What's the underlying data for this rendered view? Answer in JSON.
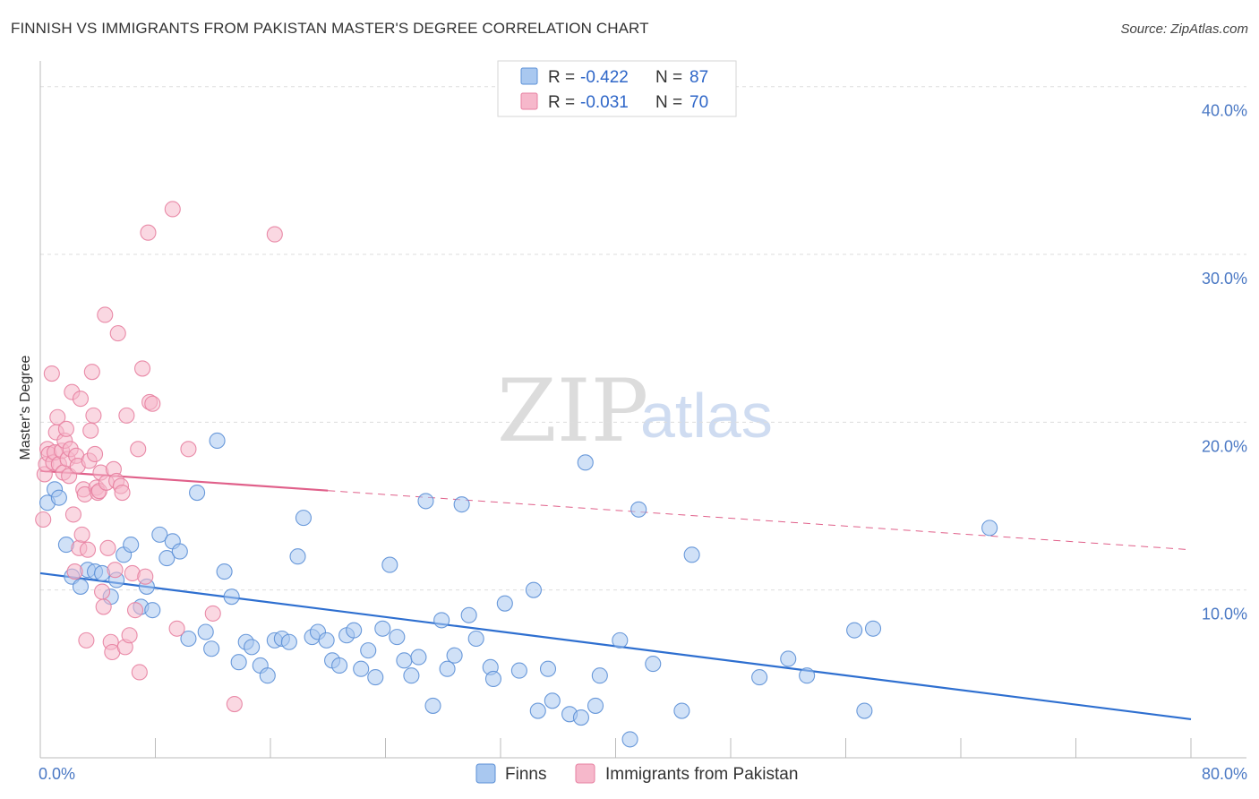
{
  "title": "FINNISH VS IMMIGRANTS FROM PAKISTAN MASTER'S DEGREE CORRELATION CHART",
  "source": "Source: ZipAtlas.com",
  "watermark": {
    "zip": "ZIP",
    "atlas": "atlas"
  },
  "colors": {
    "finns_fill": "#a9c8f0",
    "finns_stroke": "#5b8fd6",
    "finns_line": "#2e6fd0",
    "pak_fill": "#f6b8cb",
    "pak_stroke": "#e77fa0",
    "pak_line": "#e0608a",
    "grid": "#dddddd",
    "tick_text": "#4a78c4"
  },
  "legend": {
    "rows": [
      {
        "r_label": "R = ",
        "r_value": "-0.422",
        "n_label": "N = ",
        "n_value": "87"
      },
      {
        "r_label": "R = ",
        "r_value": "-0.031",
        "n_label": "N = ",
        "n_value": "70"
      }
    ]
  },
  "bottom_legend": [
    "Finns",
    "Immigrants from Pakistan"
  ],
  "chart_data": {
    "type": "scatter",
    "title": "FINNISH VS IMMIGRANTS FROM PAKISTAN MASTER'S DEGREE CORRELATION CHART",
    "xlabel": "",
    "ylabel": "Master's Degree",
    "xlim": [
      0,
      80
    ],
    "ylim": [
      0,
      41
    ],
    "x_tick_labels": [
      {
        "value": 0,
        "label": "0.0%"
      },
      {
        "value": 80,
        "label": "80.0%"
      }
    ],
    "y_tick_labels": [
      {
        "value": 10,
        "label": "10.0%"
      },
      {
        "value": 20,
        "label": "20.0%"
      },
      {
        "value": 30,
        "label": "30.0%"
      },
      {
        "value": 40,
        "label": "40.0%"
      }
    ],
    "x_minor_ticks": [
      8,
      16,
      24,
      32,
      40,
      48,
      56,
      64,
      72,
      80
    ],
    "series": [
      {
        "name": "Finns",
        "r": -0.422,
        "n": 87,
        "trend": {
          "x0": 0,
          "y0": 11.0,
          "x1": 80,
          "y1": 2.3,
          "dashed_from": null
        },
        "points": [
          [
            0.5,
            15.2
          ],
          [
            1.0,
            16.0
          ],
          [
            1.3,
            15.5
          ],
          [
            1.8,
            12.7
          ],
          [
            2.2,
            10.8
          ],
          [
            2.8,
            10.2
          ],
          [
            3.3,
            11.2
          ],
          [
            3.8,
            11.1
          ],
          [
            4.3,
            11.0
          ],
          [
            4.9,
            9.6
          ],
          [
            5.3,
            10.6
          ],
          [
            5.8,
            12.1
          ],
          [
            6.3,
            12.7
          ],
          [
            7.0,
            9.0
          ],
          [
            7.4,
            10.2
          ],
          [
            7.8,
            8.8
          ],
          [
            8.3,
            13.3
          ],
          [
            8.8,
            11.9
          ],
          [
            9.2,
            12.9
          ],
          [
            9.7,
            12.3
          ],
          [
            10.3,
            7.1
          ],
          [
            10.9,
            15.8
          ],
          [
            11.5,
            7.5
          ],
          [
            11.9,
            6.5
          ],
          [
            12.3,
            18.9
          ],
          [
            12.8,
            11.1
          ],
          [
            13.3,
            9.6
          ],
          [
            13.8,
            5.7
          ],
          [
            14.3,
            6.9
          ],
          [
            14.7,
            6.6
          ],
          [
            15.3,
            5.5
          ],
          [
            15.8,
            4.9
          ],
          [
            16.3,
            7.0
          ],
          [
            16.8,
            7.1
          ],
          [
            17.3,
            6.9
          ],
          [
            17.9,
            12.0
          ],
          [
            18.3,
            14.3
          ],
          [
            18.9,
            7.2
          ],
          [
            19.3,
            7.5
          ],
          [
            19.9,
            7.0
          ],
          [
            20.3,
            5.8
          ],
          [
            20.8,
            5.5
          ],
          [
            21.3,
            7.3
          ],
          [
            21.8,
            7.6
          ],
          [
            22.3,
            5.3
          ],
          [
            22.8,
            6.4
          ],
          [
            23.3,
            4.8
          ],
          [
            23.8,
            7.7
          ],
          [
            24.3,
            11.5
          ],
          [
            24.8,
            7.2
          ],
          [
            25.3,
            5.8
          ],
          [
            25.8,
            4.9
          ],
          [
            26.3,
            6.0
          ],
          [
            26.8,
            15.3
          ],
          [
            27.3,
            3.1
          ],
          [
            27.9,
            8.2
          ],
          [
            28.3,
            5.3
          ],
          [
            28.8,
            6.1
          ],
          [
            29.3,
            15.1
          ],
          [
            29.8,
            8.5
          ],
          [
            30.3,
            7.1
          ],
          [
            31.3,
            5.4
          ],
          [
            31.5,
            4.7
          ],
          [
            32.3,
            9.2
          ],
          [
            33.3,
            5.2
          ],
          [
            34.3,
            10.0
          ],
          [
            34.6,
            2.8
          ],
          [
            35.3,
            5.3
          ],
          [
            35.6,
            3.4
          ],
          [
            36.8,
            2.6
          ],
          [
            37.6,
            2.4
          ],
          [
            37.9,
            17.6
          ],
          [
            38.6,
            3.1
          ],
          [
            38.9,
            4.9
          ],
          [
            40.3,
            7.0
          ],
          [
            41.0,
            1.1
          ],
          [
            41.6,
            14.8
          ],
          [
            42.6,
            5.6
          ],
          [
            44.6,
            2.8
          ],
          [
            45.3,
            12.1
          ],
          [
            50.0,
            4.8
          ],
          [
            52.0,
            5.9
          ],
          [
            53.3,
            4.9
          ],
          [
            56.6,
            7.6
          ],
          [
            57.3,
            2.8
          ],
          [
            57.9,
            7.7
          ],
          [
            66.0,
            13.7
          ]
        ]
      },
      {
        "name": "Immigrants from Pakistan",
        "r": -0.031,
        "n": 70,
        "trend": {
          "x0": 0,
          "y0": 17.1,
          "x1": 80,
          "y1": 12.4,
          "dashed_from": 20
        },
        "points": [
          [
            0.2,
            14.2
          ],
          [
            0.3,
            16.9
          ],
          [
            0.4,
            17.5
          ],
          [
            0.5,
            18.4
          ],
          [
            0.6,
            18.1
          ],
          [
            0.8,
            22.9
          ],
          [
            0.9,
            17.6
          ],
          [
            1.0,
            18.2
          ],
          [
            1.1,
            19.4
          ],
          [
            1.2,
            20.3
          ],
          [
            1.3,
            17.5
          ],
          [
            1.5,
            18.3
          ],
          [
            1.6,
            17.0
          ],
          [
            1.7,
            18.9
          ],
          [
            1.8,
            19.6
          ],
          [
            1.9,
            17.8
          ],
          [
            2.0,
            16.8
          ],
          [
            2.1,
            18.4
          ],
          [
            2.2,
            21.8
          ],
          [
            2.3,
            14.5
          ],
          [
            2.4,
            11.1
          ],
          [
            2.5,
            18.0
          ],
          [
            2.6,
            17.4
          ],
          [
            2.7,
            12.5
          ],
          [
            2.8,
            21.4
          ],
          [
            2.9,
            13.3
          ],
          [
            3.0,
            16.0
          ],
          [
            3.1,
            15.7
          ],
          [
            3.2,
            7.0
          ],
          [
            3.3,
            12.4
          ],
          [
            3.4,
            17.7
          ],
          [
            3.5,
            19.5
          ],
          [
            3.6,
            23.0
          ],
          [
            3.7,
            20.4
          ],
          [
            3.8,
            18.1
          ],
          [
            3.9,
            16.1
          ],
          [
            4.0,
            15.8
          ],
          [
            4.1,
            15.9
          ],
          [
            4.2,
            17.0
          ],
          [
            4.3,
            9.9
          ],
          [
            4.4,
            9.0
          ],
          [
            4.5,
            26.4
          ],
          [
            4.6,
            16.4
          ],
          [
            4.7,
            12.5
          ],
          [
            4.9,
            6.9
          ],
          [
            5.0,
            6.3
          ],
          [
            5.1,
            17.2
          ],
          [
            5.2,
            11.2
          ],
          [
            5.3,
            16.5
          ],
          [
            5.4,
            25.3
          ],
          [
            5.6,
            16.2
          ],
          [
            5.7,
            15.8
          ],
          [
            5.9,
            6.6
          ],
          [
            6.0,
            20.4
          ],
          [
            6.2,
            7.3
          ],
          [
            6.4,
            11.0
          ],
          [
            6.6,
            8.8
          ],
          [
            6.8,
            18.4
          ],
          [
            6.9,
            5.1
          ],
          [
            7.1,
            23.2
          ],
          [
            7.3,
            10.8
          ],
          [
            7.5,
            31.3
          ],
          [
            7.6,
            21.2
          ],
          [
            7.8,
            21.1
          ],
          [
            9.2,
            32.7
          ],
          [
            9.5,
            7.7
          ],
          [
            10.3,
            18.4
          ],
          [
            12.0,
            8.6
          ],
          [
            13.5,
            3.2
          ],
          [
            16.3,
            31.2
          ]
        ]
      }
    ]
  }
}
